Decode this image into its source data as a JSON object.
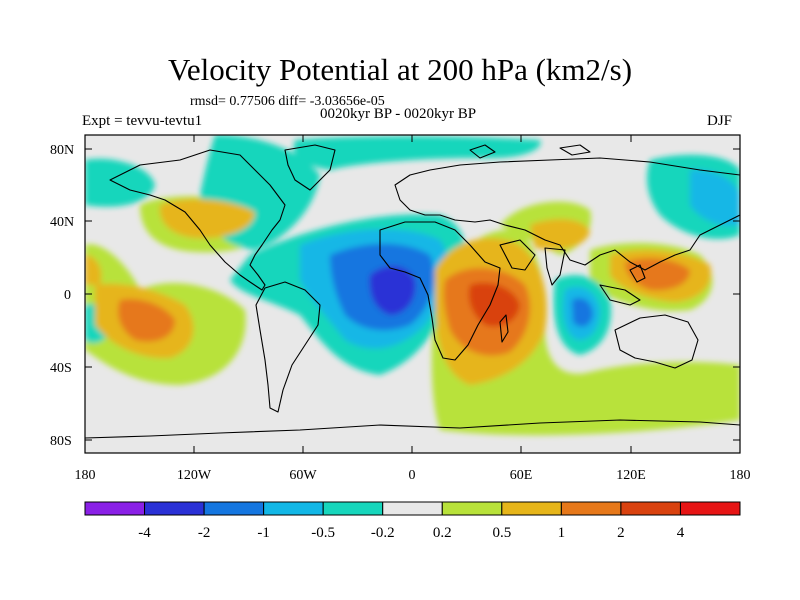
{
  "title": "Velocity Potential at 200 hPa (km2/s)",
  "stats_line": "rmsd= 0.77506 diff= -3.03656e-05",
  "period_line": "0020kyr BP - 0020kyr BP",
  "expt_line": "Expt = tevvu-tevtu1",
  "season": "DJF",
  "lat_labels": [
    "80N",
    "40N",
    "0",
    "40S",
    "80S"
  ],
  "lon_labels": [
    "180",
    "120W",
    "60W",
    "0",
    "60E",
    "120E",
    "180"
  ],
  "colorbar": {
    "labels": [
      "-4",
      "-2",
      "-1",
      "-0.5",
      "-0.2",
      "0.2",
      "0.5",
      "1",
      "2",
      "4"
    ],
    "colors": [
      "#8a20e6",
      "#2a31d6",
      "#1476e0",
      "#12b7e6",
      "#17d6bc",
      "#e8e8e8",
      "#b8e23a",
      "#e6b51a",
      "#e6781a",
      "#d9420f",
      "#e61414"
    ]
  }
}
